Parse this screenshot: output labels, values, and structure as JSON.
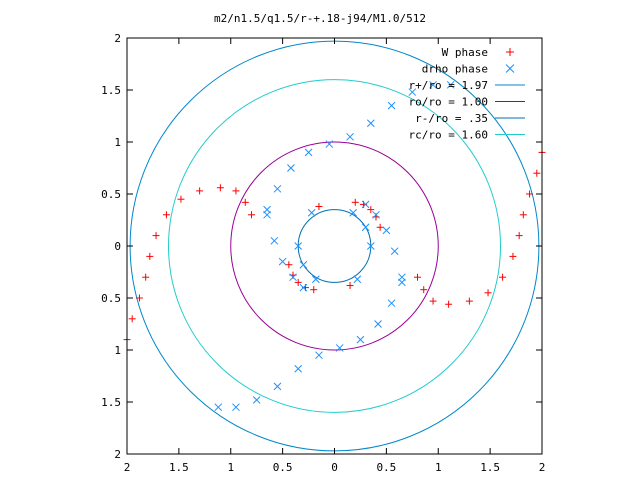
{
  "chart_data": {
    "type": "scatter",
    "title": "m2/n1.5/q1.5/r-+.18-j94/M1.0/512",
    "xlim": [
      -2,
      2
    ],
    "ylim": [
      -2,
      2
    ],
    "x_ticks": [
      -2,
      -1.5,
      -1,
      -0.5,
      0,
      0.5,
      1,
      1.5,
      2
    ],
    "y_ticks": [
      -2,
      -1.5,
      -1,
      -0.5,
      0,
      0.5,
      1,
      1.5,
      2
    ],
    "x_tick_labels": [
      "2",
      "1.5",
      "1",
      "0.5",
      "0",
      "0.5",
      "1",
      "1.5",
      "2"
    ],
    "y_tick_labels": [
      "2",
      "1.5",
      "1",
      "0.5",
      "0",
      "0.5",
      "1",
      "1.5",
      "2"
    ],
    "grid": false,
    "legend_position": "top-right",
    "series": [
      {
        "name": "W phase",
        "kind": "points",
        "marker": "plus",
        "color": "#ff0000",
        "points": [
          [
            -2.0,
            -0.9
          ],
          [
            -1.95,
            -0.7
          ],
          [
            -1.88,
            -0.5
          ],
          [
            -1.82,
            -0.3
          ],
          [
            -1.78,
            -0.1
          ],
          [
            -1.72,
            0.1
          ],
          [
            -1.62,
            0.3
          ],
          [
            -1.48,
            0.45
          ],
          [
            -1.3,
            0.53
          ],
          [
            -1.1,
            0.56
          ],
          [
            -0.95,
            0.53
          ],
          [
            -0.86,
            0.42
          ],
          [
            -0.8,
            0.3
          ],
          [
            2.0,
            0.9
          ],
          [
            1.95,
            0.7
          ],
          [
            1.88,
            0.5
          ],
          [
            1.82,
            0.3
          ],
          [
            1.78,
            0.1
          ],
          [
            1.72,
            -0.1
          ],
          [
            1.62,
            -0.3
          ],
          [
            1.48,
            -0.45
          ],
          [
            1.3,
            -0.53
          ],
          [
            1.1,
            -0.56
          ],
          [
            0.95,
            -0.53
          ],
          [
            0.86,
            -0.42
          ],
          [
            0.8,
            -0.3
          ],
          [
            -0.15,
            0.38
          ],
          [
            0.15,
            -0.38
          ],
          [
            0.2,
            0.42
          ],
          [
            0.28,
            0.4
          ],
          [
            0.35,
            0.35
          ],
          [
            0.4,
            0.28
          ],
          [
            0.44,
            0.18
          ],
          [
            -0.2,
            -0.42
          ],
          [
            -0.28,
            -0.4
          ],
          [
            -0.35,
            -0.35
          ],
          [
            -0.4,
            -0.28
          ],
          [
            -0.44,
            -0.18
          ]
        ]
      },
      {
        "name": "drho phase",
        "kind": "points",
        "marker": "cross",
        "color": "#1e90ff",
        "points": [
          [
            -0.65,
            0.35
          ],
          [
            -0.55,
            0.55
          ],
          [
            -0.42,
            0.75
          ],
          [
            -0.25,
            0.9
          ],
          [
            -0.05,
            0.98
          ],
          [
            0.15,
            1.05
          ],
          [
            0.35,
            1.18
          ],
          [
            0.55,
            1.35
          ],
          [
            0.75,
            1.48
          ],
          [
            0.95,
            1.55
          ],
          [
            1.12,
            1.55
          ],
          [
            0.65,
            -0.35
          ],
          [
            0.55,
            -0.55
          ],
          [
            0.42,
            -0.75
          ],
          [
            0.25,
            -0.9
          ],
          [
            0.05,
            -0.98
          ],
          [
            -0.15,
            -1.05
          ],
          [
            -0.35,
            -1.18
          ],
          [
            -0.55,
            -1.35
          ],
          [
            -0.75,
            -1.48
          ],
          [
            -0.95,
            -1.55
          ],
          [
            -1.12,
            -1.55
          ],
          [
            -0.22,
            0.32
          ],
          [
            -0.35,
            0.0
          ],
          [
            -0.3,
            -0.18
          ],
          [
            -0.18,
            -0.32
          ],
          [
            0.22,
            -0.32
          ],
          [
            0.35,
            0.0
          ],
          [
            0.3,
            0.18
          ],
          [
            0.18,
            0.32
          ],
          [
            -0.65,
            0.3
          ],
          [
            -0.58,
            0.05
          ],
          [
            -0.5,
            -0.15
          ],
          [
            -0.4,
            -0.3
          ],
          [
            -0.3,
            -0.4
          ],
          [
            0.65,
            -0.3
          ],
          [
            0.58,
            -0.05
          ],
          [
            0.5,
            0.15
          ],
          [
            0.4,
            0.3
          ],
          [
            0.3,
            0.4
          ]
        ]
      },
      {
        "name": "r+/ro = 1.97",
        "kind": "circle",
        "r": 1.97,
        "color": "#0088cc"
      },
      {
        "name": "ro/ro = 1.00",
        "kind": "circle",
        "r": 1.0,
        "color": "#990099"
      },
      {
        "name": "r-/ro = .35",
        "kind": "circle",
        "r": 0.35,
        "color": "#0070b0"
      },
      {
        "name": "rc/ro = 1.60",
        "kind": "circle",
        "r": 1.6,
        "color": "#22cccc"
      }
    ]
  }
}
